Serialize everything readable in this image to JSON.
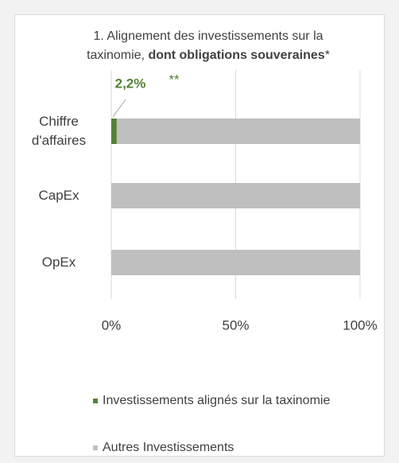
{
  "chart_data": {
    "type": "stacked_barh",
    "title": {
      "text": "1. Alignement des investissements sur la taxinomie,",
      "bold": "dont obligations souveraines",
      "suffix": "*"
    },
    "annotation": "**",
    "categories": [
      "Chiffre d'affaires",
      "CapEx",
      "OpEx"
    ],
    "series": [
      {
        "name": "Investissements alignés sur la taxinomie",
        "color": "#548235",
        "values": [
          2.2,
          0,
          0
        ],
        "value_labels": [
          "2,2%",
          null,
          null
        ]
      },
      {
        "name": "Autres Investissements",
        "color": "#bfbfbf",
        "values": [
          97.8,
          100,
          100
        ]
      }
    ],
    "xlim": [
      0,
      100
    ],
    "xticks": [
      {
        "value": 0,
        "label": "0%"
      },
      {
        "value": 50,
        "label": "50%"
      },
      {
        "value": 100,
        "label": "100%"
      }
    ],
    "grid": true
  }
}
